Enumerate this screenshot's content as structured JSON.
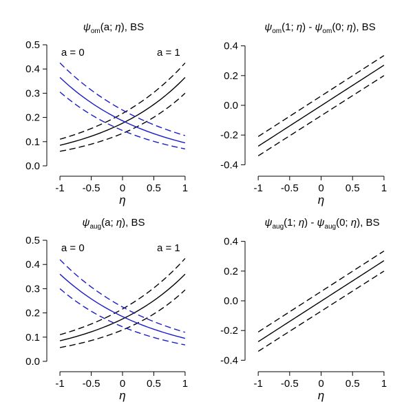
{
  "colors": {
    "black": "#000000",
    "blue": "#1a1acc"
  },
  "chart_data": [
    {
      "type": "line",
      "title": {
        "psi": "ψ",
        "sub": "om",
        "mid": "(a; ",
        "eta": "η",
        "tail": "), BS"
      },
      "xlabel": "η",
      "xlim": [
        -1.1,
        1.1
      ],
      "ylim": [
        -0.02,
        0.52
      ],
      "xticks": [
        -1,
        -0.5,
        0,
        0.5,
        1
      ],
      "xtick_labels": [
        "-1",
        "-0.5",
        "0",
        "0.5",
        "1"
      ],
      "yticks": [
        0,
        0.1,
        0.2,
        0.3,
        0.4,
        0.5
      ],
      "ytick_labels": [
        "0.0",
        "0.1",
        "0.2",
        "0.3",
        "0.4",
        "0.5"
      ],
      "annotations": [
        {
          "text": "a = 0",
          "x": -0.98,
          "y": 0.455
        },
        {
          "text": "a = 1",
          "x": 0.55,
          "y": 0.455
        }
      ],
      "series": [
        {
          "name": "a = 1 estimate",
          "color": "black",
          "dash": false,
          "start": 0.085,
          "end": 0.365
        },
        {
          "name": "a = 1 upper",
          "color": "black",
          "dash": true,
          "start": 0.11,
          "end": 0.425
        },
        {
          "name": "a = 1 lower",
          "color": "black",
          "dash": true,
          "start": 0.06,
          "end": 0.3
        },
        {
          "name": "a = 0 estimate",
          "color": "blue",
          "dash": false,
          "start": 0.365,
          "end": 0.095
        },
        {
          "name": "a = 0 upper",
          "color": "blue",
          "dash": true,
          "start": 0.425,
          "end": 0.125
        },
        {
          "name": "a = 0 lower",
          "color": "blue",
          "dash": true,
          "start": 0.305,
          "end": 0.07
        }
      ]
    },
    {
      "type": "line",
      "title": {
        "psi1": "ψ",
        "sub1": "om",
        "mid1": "(1; ",
        "eta1": "η",
        "sep": ") - ",
        "psi2": "ψ",
        "sub2": "om",
        "mid2": "(0; ",
        "eta2": "η",
        "tail": "), BS"
      },
      "xlabel": "η",
      "xlim": [
        -1.1,
        1.1
      ],
      "ylim": [
        -0.44,
        0.44
      ],
      "xticks": [
        -1,
        -0.5,
        0,
        0.5,
        1
      ],
      "xtick_labels": [
        "-1",
        "-0.5",
        "0",
        "0.5",
        "1"
      ],
      "yticks": [
        -0.4,
        -0.2,
        0,
        0.2,
        0.4
      ],
      "ytick_labels": [
        "-0.4",
        "-0.2",
        "0.0",
        "0.2",
        "0.4"
      ],
      "annotations": [],
      "series": [
        {
          "name": "difference estimate",
          "color": "black",
          "dash": false,
          "start": -0.275,
          "end": 0.27
        },
        {
          "name": "difference upper",
          "color": "black",
          "dash": true,
          "start": -0.21,
          "end": 0.335
        },
        {
          "name": "difference lower",
          "color": "black",
          "dash": true,
          "start": -0.34,
          "end": 0.2
        }
      ]
    },
    {
      "type": "line",
      "title": {
        "psi": "ψ",
        "sub": "aug",
        "mid": "(a; ",
        "eta": "η",
        "tail": "), BS"
      },
      "xlabel": "η",
      "xlim": [
        -1.1,
        1.1
      ],
      "ylim": [
        -0.02,
        0.52
      ],
      "xticks": [
        -1,
        -0.5,
        0,
        0.5,
        1
      ],
      "xtick_labels": [
        "-1",
        "-0.5",
        "0",
        "0.5",
        "1"
      ],
      "yticks": [
        0,
        0.1,
        0.2,
        0.3,
        0.4,
        0.5
      ],
      "ytick_labels": [
        "0.0",
        "0.1",
        "0.2",
        "0.3",
        "0.4",
        "0.5"
      ],
      "annotations": [
        {
          "text": "a = 0",
          "x": -0.98,
          "y": 0.455
        },
        {
          "text": "a = 1",
          "x": 0.55,
          "y": 0.455
        }
      ],
      "series": [
        {
          "name": "a = 1 estimate",
          "color": "black",
          "dash": false,
          "start": 0.085,
          "end": 0.36
        },
        {
          "name": "a = 1 upper",
          "color": "black",
          "dash": true,
          "start": 0.11,
          "end": 0.425
        },
        {
          "name": "a = 1 lower",
          "color": "black",
          "dash": true,
          "start": 0.057,
          "end": 0.295
        },
        {
          "name": "a = 0 estimate",
          "color": "blue",
          "dash": false,
          "start": 0.36,
          "end": 0.095
        },
        {
          "name": "a = 0 upper",
          "color": "blue",
          "dash": true,
          "start": 0.42,
          "end": 0.12
        },
        {
          "name": "a = 0 lower",
          "color": "blue",
          "dash": true,
          "start": 0.3,
          "end": 0.068
        }
      ]
    },
    {
      "type": "line",
      "title": {
        "psi1": "ψ",
        "sub1": "aug",
        "mid1": "(1; ",
        "eta1": "η",
        "sep": ") - ",
        "psi2": "ψ",
        "sub2": "aug",
        "mid2": "(0; ",
        "eta2": "η",
        "tail": "), BS"
      },
      "xlabel": "η",
      "xlim": [
        -1.1,
        1.1
      ],
      "ylim": [
        -0.44,
        0.44
      ],
      "xticks": [
        -1,
        -0.5,
        0,
        0.5,
        1
      ],
      "xtick_labels": [
        "-1",
        "-0.5",
        "0",
        "0.5",
        "1"
      ],
      "yticks": [
        -0.4,
        -0.2,
        0,
        0.2,
        0.4
      ],
      "ytick_labels": [
        "-0.4",
        "-0.2",
        "0.0",
        "0.2",
        "0.4"
      ],
      "annotations": [],
      "series": [
        {
          "name": "difference estimate",
          "color": "black",
          "dash": false,
          "start": -0.275,
          "end": 0.27
        },
        {
          "name": "difference upper",
          "color": "black",
          "dash": true,
          "start": -0.21,
          "end": 0.335
        },
        {
          "name": "difference lower",
          "color": "black",
          "dash": true,
          "start": -0.34,
          "end": 0.2
        }
      ]
    }
  ]
}
